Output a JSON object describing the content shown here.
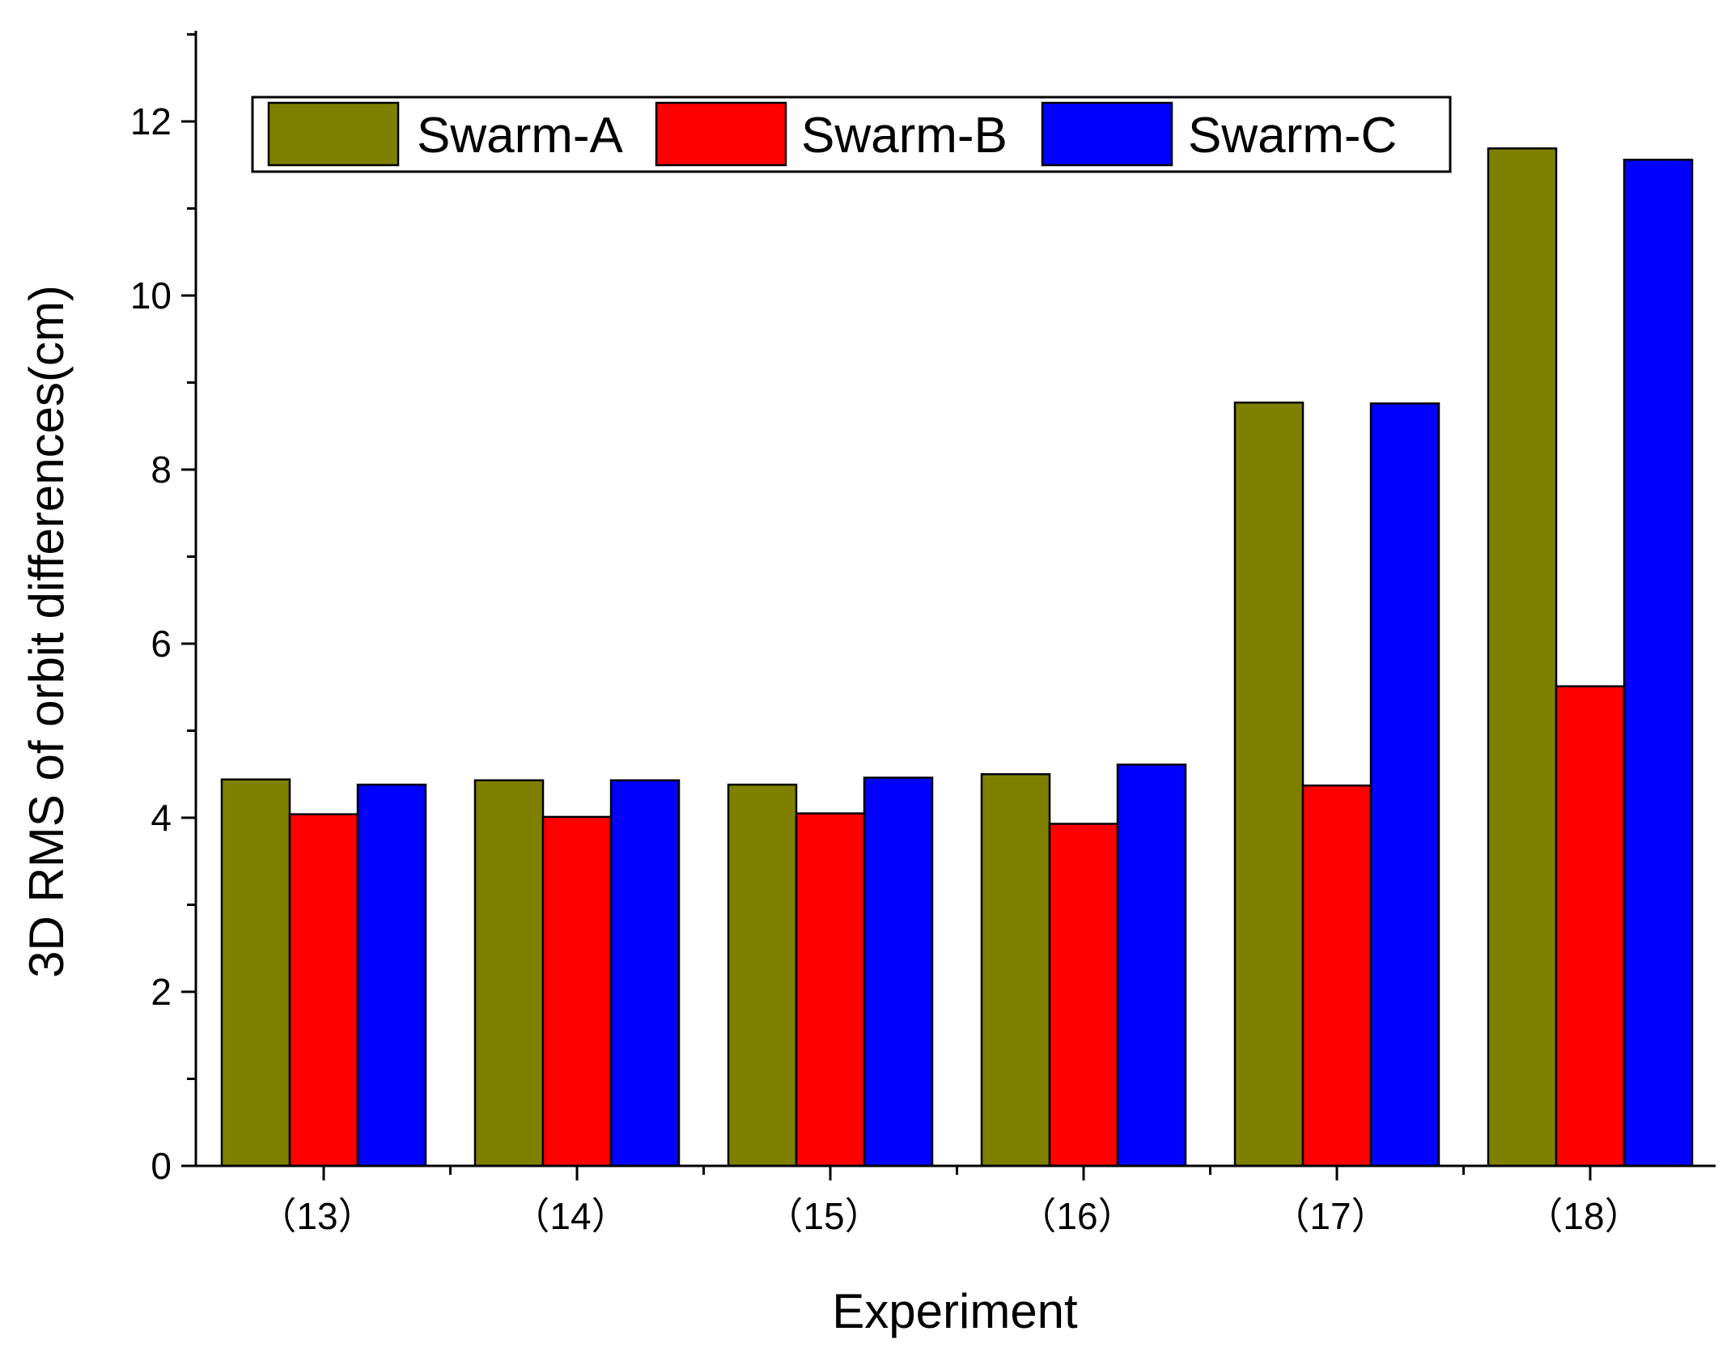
{
  "chart_data": {
    "type": "bar",
    "title": "",
    "xlabel": "Experiment",
    "ylabel": "3D RMS of orbit differences(cm)",
    "categories": [
      "（13）",
      "（14）",
      "（15）",
      "（16）",
      "（17）",
      "（18）"
    ],
    "series": [
      {
        "name": "Swarm-A",
        "color": "#808000",
        "values": [
          4.44,
          4.43,
          4.38,
          4.5,
          8.77,
          11.69
        ]
      },
      {
        "name": "Swarm-B",
        "color": "#ff0000",
        "values": [
          4.04,
          4.01,
          4.05,
          3.93,
          4.37,
          5.51
        ]
      },
      {
        "name": "Swarm-C",
        "color": "#0000ff",
        "values": [
          4.38,
          4.43,
          4.46,
          4.61,
          8.76,
          11.56
        ]
      }
    ],
    "ylim": [
      0,
      13
    ],
    "yticks": [
      0,
      2,
      4,
      6,
      8,
      10,
      12
    ],
    "ytick_labels": [
      "0",
      "2",
      "4",
      "6",
      "8",
      "10",
      "12"
    ],
    "minor_tick_step": 1,
    "grid": false,
    "legend_position": "top"
  }
}
